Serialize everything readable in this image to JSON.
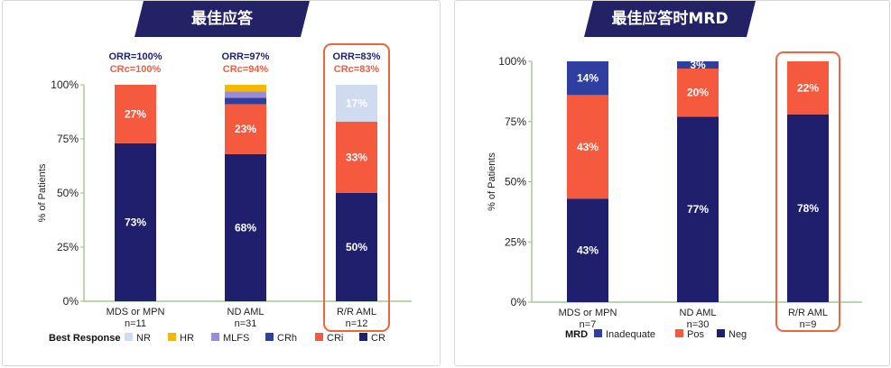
{
  "colors": {
    "navy": "#1f1f6e",
    "tab": "#242266",
    "orange": "#f55a3e",
    "light_blue": "#cfdcef",
    "yellow": "#f5b800",
    "purple": "#9c8cd8",
    "crh_blue": "#2f3fa0",
    "axis_green": "#8fbf7a",
    "highlight": "#f0643c"
  },
  "left": {
    "title": "最佳应答",
    "ylabel": "% of Patients",
    "yticks": [
      "0%",
      "25%",
      "50%",
      "75%",
      "100%"
    ],
    "legend_title": "Best Response",
    "legend": [
      {
        "label": "NR",
        "color": "#cfdcef"
      },
      {
        "label": "HR",
        "color": "#f5b800"
      },
      {
        "label": "MLFS",
        "color": "#9c8cd8"
      },
      {
        "label": "CRh",
        "color": "#2f3fa0"
      },
      {
        "label": "CRi",
        "color": "#f55a3e"
      },
      {
        "label": "CR",
        "color": "#1f1f6e"
      }
    ],
    "groups": [
      {
        "orr": "ORR=100%",
        "crc": "CRc=100%"
      },
      {
        "orr": "ORR=97%",
        "crc": "CRc=94%"
      },
      {
        "orr": "ORR=83%",
        "crc": "CRc=83%"
      }
    ]
  },
  "right": {
    "title": "最佳应答时MRD",
    "ylabel": "% of Patients",
    "yticks": [
      "0%",
      "25%",
      "50%",
      "75%",
      "100%"
    ],
    "legend_title": "MRD",
    "legend": [
      {
        "label": "Inadequate",
        "color": "#2f3fa0"
      },
      {
        "label": "Pos",
        "color": "#f55a3e"
      },
      {
        "label": "Neg",
        "color": "#1f1f6e"
      }
    ]
  },
  "chart_data": [
    {
      "type": "bar",
      "stacked": true,
      "title": "最佳应答",
      "xlabel": "",
      "ylabel": "% of Patients",
      "ylim": [
        0,
        100
      ],
      "categories": [
        "MDS or MPN",
        "ND AML",
        "R/R AML"
      ],
      "category_n": [
        "n=11",
        "n=31",
        "n=12"
      ],
      "highlighted_category": "R/R AML",
      "series": [
        {
          "name": "CR",
          "color": "#1f1f6e",
          "values": [
            73,
            68,
            50
          ],
          "labels": [
            "73%",
            "68%",
            "50%"
          ]
        },
        {
          "name": "CRi",
          "color": "#f55a3e",
          "values": [
            27,
            23,
            33
          ],
          "labels": [
            "27%",
            "23%",
            "33%"
          ]
        },
        {
          "name": "CRh",
          "color": "#2f3fa0",
          "values": [
            0,
            3,
            0
          ],
          "labels": [
            "",
            "",
            ""
          ]
        },
        {
          "name": "MLFS",
          "color": "#9c8cd8",
          "values": [
            0,
            3,
            0
          ],
          "labels": [
            "",
            "",
            ""
          ]
        },
        {
          "name": "HR",
          "color": "#f5b800",
          "values": [
            0,
            3,
            0
          ],
          "labels": [
            "",
            "",
            ""
          ]
        },
        {
          "name": "NR",
          "color": "#cfdcef",
          "values": [
            0,
            0,
            17
          ],
          "labels": [
            "",
            "",
            "17%"
          ]
        }
      ],
      "legend_position": "bottom"
    },
    {
      "type": "bar",
      "stacked": true,
      "title": "最佳应答时MRD",
      "xlabel": "",
      "ylabel": "% of Patients",
      "ylim": [
        0,
        100
      ],
      "categories": [
        "MDS or MPN",
        "ND AML",
        "R/R AML"
      ],
      "category_n": [
        "n=7",
        "n=30",
        "n=9"
      ],
      "highlighted_category": "R/R AML",
      "series": [
        {
          "name": "Neg",
          "color": "#1f1f6e",
          "values": [
            43,
            77,
            78
          ],
          "labels": [
            "43%",
            "77%",
            "78%"
          ]
        },
        {
          "name": "Pos",
          "color": "#f55a3e",
          "values": [
            43,
            20,
            22
          ],
          "labels": [
            "43%",
            "20%",
            "22%"
          ]
        },
        {
          "name": "Inadequate",
          "color": "#2f3fa0",
          "values": [
            14,
            3,
            0
          ],
          "labels": [
            "14%",
            "3%",
            ""
          ]
        }
      ],
      "legend_position": "bottom"
    }
  ]
}
